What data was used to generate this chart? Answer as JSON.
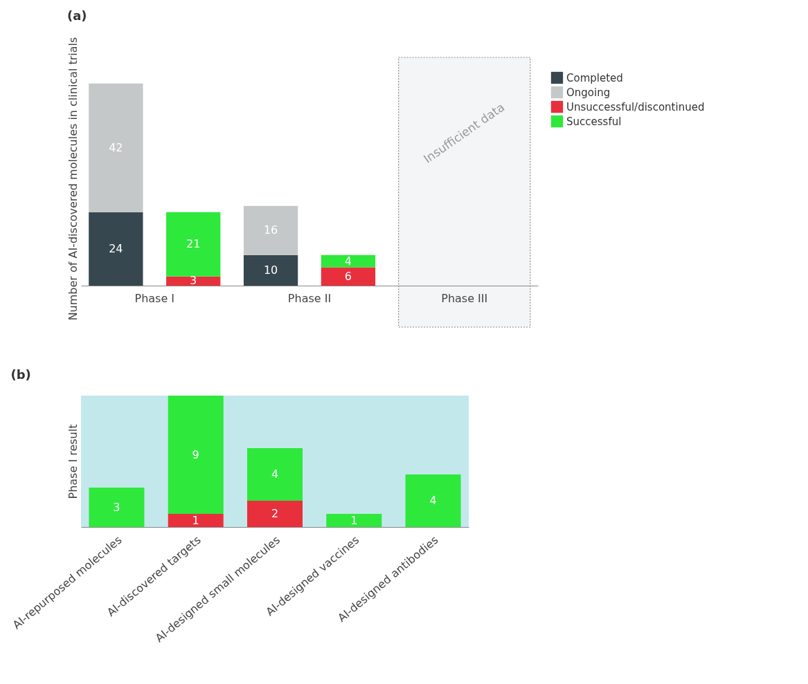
{
  "chart_data": [
    {
      "type": "bar",
      "title": "(a)",
      "ylabel": "Number of AI-discovered molecules in clinical trials",
      "categories": [
        "Phase I",
        null,
        "Phase II",
        null,
        "Phase III",
        null
      ],
      "stacked": true,
      "data_labels": true,
      "tick_labels": "x",
      "legend": "right",
      "annotations": [
        "Insufficient data"
      ],
      "series": [
        {
          "name": "Completed",
          "color": "#37474f",
          "values": [
            24,
            null,
            10,
            null,
            null,
            null
          ]
        },
        {
          "name": "Ongoing",
          "color": "#c4c8c8",
          "values": [
            42,
            null,
            16,
            null,
            null,
            null
          ]
        },
        {
          "name": "Unsuccessful/discontinued",
          "color": "#e8303c",
          "values": [
            null,
            3,
            null,
            6,
            null,
            null
          ]
        },
        {
          "name": "Successful",
          "color": "#2ee83c",
          "values": [
            null,
            21,
            null,
            4,
            null,
            null
          ]
        }
      ]
    },
    {
      "type": "bar",
      "title": "(b)",
      "ylabel": "Phase I result",
      "categories": [
        "AI-repurposed molecules",
        "AI-discovered targets",
        "AI-designed small molecules",
        "AI-designed vaccines",
        "AI-designed antibodies"
      ],
      "stacked": true,
      "data_labels": true,
      "tick_labels": "x",
      "series": [
        {
          "color": "#e8303c",
          "values": [
            null,
            1,
            2,
            null,
            null
          ]
        },
        {
          "color": "#2ee83c",
          "values": [
            3,
            9,
            4,
            1,
            4
          ]
        }
      ]
    }
  ]
}
